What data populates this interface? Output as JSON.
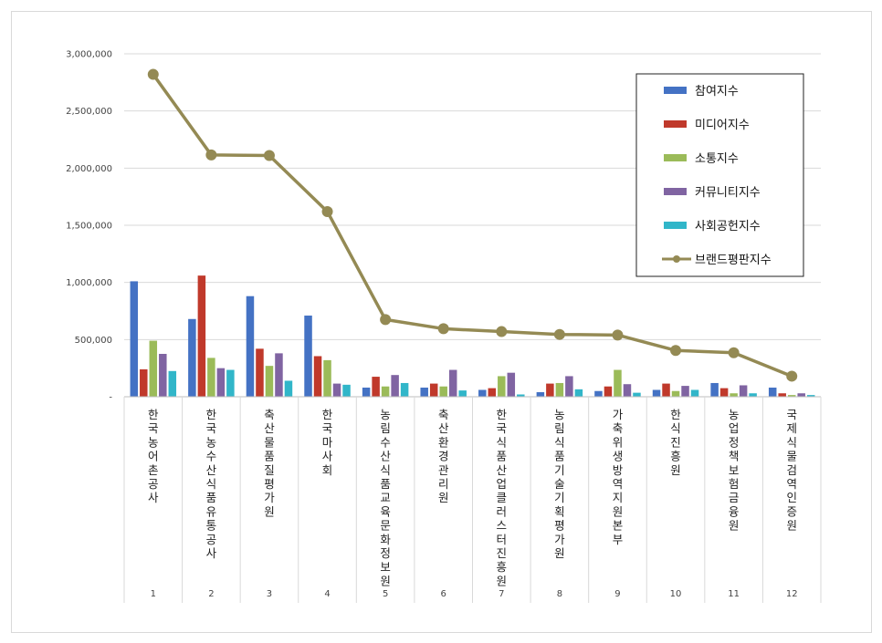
{
  "chart_data": {
    "type": "bar",
    "categories": [
      "한국농어촌공사",
      "한국농수산식품유통공사",
      "축산물품질평가원",
      "한국마사회",
      "농림수산식품교육문화정보원",
      "축산환경관리원",
      "한국식품산업클러스터진흥원",
      "농림식품기술기획평가원",
      "가축위생방역지원본부",
      "한식진흥원",
      "농업정책보험금융원",
      "국제식물검역인증원"
    ],
    "ranks": [
      "1",
      "2",
      "3",
      "4",
      "5",
      "6",
      "7",
      "8",
      "9",
      "10",
      "11",
      "12"
    ],
    "series": [
      {
        "name": "참여지수",
        "color": "#4472c4",
        "values": [
          1010000,
          680000,
          880000,
          710000,
          80000,
          80000,
          60000,
          40000,
          50000,
          60000,
          120000,
          80000
        ]
      },
      {
        "name": "미디어지수",
        "color": "#c0392b",
        "values": [
          240000,
          1060000,
          420000,
          355000,
          175000,
          115000,
          75000,
          115000,
          90000,
          115000,
          75000,
          30000
        ]
      },
      {
        "name": "소통지수",
        "color": "#9bbb59",
        "values": [
          490000,
          340000,
          270000,
          320000,
          90000,
          90000,
          180000,
          120000,
          235000,
          50000,
          30000,
          15000
        ]
      },
      {
        "name": "커뮤니티지수",
        "color": "#8064a2",
        "values": [
          375000,
          250000,
          380000,
          115000,
          190000,
          235000,
          210000,
          180000,
          110000,
          95000,
          100000,
          30000
        ]
      },
      {
        "name": "사회공헌지수",
        "color": "#31b6c9",
        "values": [
          225000,
          235000,
          140000,
          105000,
          120000,
          55000,
          20000,
          65000,
          35000,
          60000,
          30000,
          15000
        ]
      },
      {
        "name": "브랜드평판지수",
        "color": "#948a54",
        "type": "line",
        "values": [
          2820000,
          2115000,
          2110000,
          1620000,
          675000,
          595000,
          570000,
          545000,
          540000,
          405000,
          385000,
          180000
        ]
      }
    ],
    "yticks": [
      "3,000,000",
      "2,500,000",
      "2,000,000",
      "1,500,000",
      "1,000,000",
      "500,000",
      "-"
    ],
    "ylim": [
      0,
      3000000
    ],
    "legend_position": "top-right",
    "grid": true
  }
}
